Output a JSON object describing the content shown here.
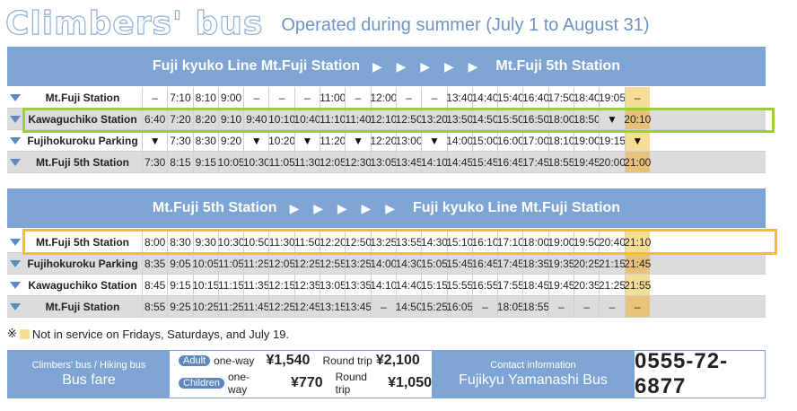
{
  "header": {
    "title": "Climbers' bus",
    "subtitle": "Operated during summer (July 1 to August 31)"
  },
  "colors": {
    "accent_blue": "#7ea4d3",
    "highlight_gold": "#f7de97",
    "box_green": "#9ad033",
    "box_yellow": "#f0c02a"
  },
  "uphill": {
    "route_from": "Fuji kyuko Line Mt.Fuji Station",
    "arrows": "▶ ▶ ▶ ▶ ▶",
    "route_to": "Mt.Fuji 5th Station",
    "rows": [
      {
        "station": "Mt.Fuji Station",
        "times": [
          "–",
          "7:10",
          "8:10",
          "9:00",
          "–",
          "–",
          "–",
          "11:00",
          "–",
          "12:00",
          "–",
          "–",
          "13:40",
          "14:40",
          "15:40",
          "16:40",
          "17:50",
          "18:40",
          "19:05",
          "–"
        ]
      },
      {
        "station": "Kawaguchiko Station",
        "times": [
          "6:40",
          "7:20",
          "8:20",
          "9:10",
          "9:40",
          "10:10",
          "10:40",
          "11:10",
          "11:40",
          "12:10",
          "12:50",
          "13:20",
          "13:50",
          "14:50",
          "15:50",
          "16:50",
          "18:00",
          "18:50",
          "▼",
          "20:10"
        ]
      },
      {
        "station": "Fujihokuroku Parking",
        "times": [
          "▼",
          "7:30",
          "8:30",
          "9:20",
          "▼",
          "10:20",
          "▼",
          "11:20",
          "▼",
          "12:20",
          "13:00",
          "▼",
          "14:00",
          "15:00",
          "16:00",
          "17:00",
          "18:10",
          "19:00",
          "19:15",
          "▼"
        ]
      },
      {
        "station": "Mt.Fuji 5th Station",
        "times": [
          "7:30",
          "8:15",
          "9:15",
          "10:05",
          "10:30",
          "11:05",
          "11:30",
          "12:05",
          "12:30",
          "13:05",
          "13:45",
          "14:10",
          "14:45",
          "15:45",
          "16:45",
          "17:45",
          "18:55",
          "19:45",
          "20:00",
          "21:00"
        ]
      }
    ]
  },
  "downhill": {
    "route_from": "Mt.Fuji 5th Station",
    "arrows": "▶ ▶ ▶ ▶ ▶",
    "route_to": "Fuji kyuko Line Mt.Fuji Station",
    "rows": [
      {
        "station": "Mt.Fuji 5th Station",
        "times": [
          "8:00",
          "8:30",
          "9:30",
          "10:30",
          "10:50",
          "11:30",
          "11:50",
          "12:20",
          "12:50",
          "13:25",
          "13:55",
          "14:30",
          "15:10",
          "16:10",
          "17:10",
          "18:00",
          "19:00",
          "19:50",
          "20:40",
          "21:10"
        ]
      },
      {
        "station": "Fujihokuroku Parking",
        "times": [
          "8:35",
          "9:05",
          "10:05",
          "11:05",
          "11:25",
          "12:05",
          "12:25",
          "12:55",
          "13:25",
          "14:00",
          "14:30",
          "15:05",
          "15:45",
          "16:45",
          "17:45",
          "18:35",
          "19:35",
          "20:25",
          "21:15",
          "21:45"
        ]
      },
      {
        "station": "Kawaguchiko Station",
        "times": [
          "8:45",
          "9:15",
          "10:15",
          "11:15",
          "11:35",
          "12:15",
          "12:35",
          "13:05",
          "13:35",
          "14:10",
          "14:40",
          "15:15",
          "15:55",
          "16:55",
          "17:55",
          "18:45",
          "19:45",
          "20:35",
          "21:25",
          "21:55"
        ]
      },
      {
        "station": "Mt.Fuji Station",
        "times": [
          "8:55",
          "9:25",
          "10:25",
          "11:25",
          "11:45",
          "12:25",
          "12:45",
          "13:15",
          "13:45",
          "–",
          "14:50",
          "15:25",
          "16:05",
          "–",
          "18:05",
          "18:55",
          "–",
          "–",
          "–",
          "–"
        ]
      }
    ]
  },
  "note": {
    "prefix": "※",
    "text": "Not in service on Fridays, Saturdays, and July 19."
  },
  "footer": {
    "fare_small": "Climbers' bus / Hiking bus",
    "fare_big": "Bus fare",
    "adult_label": "Adult",
    "children_label": "Children",
    "oneway_label": "one-way",
    "round_label": "Round trip",
    "adult_oneway": "¥1,540",
    "adult_round": "¥2,100",
    "child_oneway": "¥770",
    "child_round": "¥1,050",
    "contact_small": "Contact information",
    "contact_big": "Fujikyu Yamanashi Bus",
    "phone": "0555-72-6877"
  }
}
